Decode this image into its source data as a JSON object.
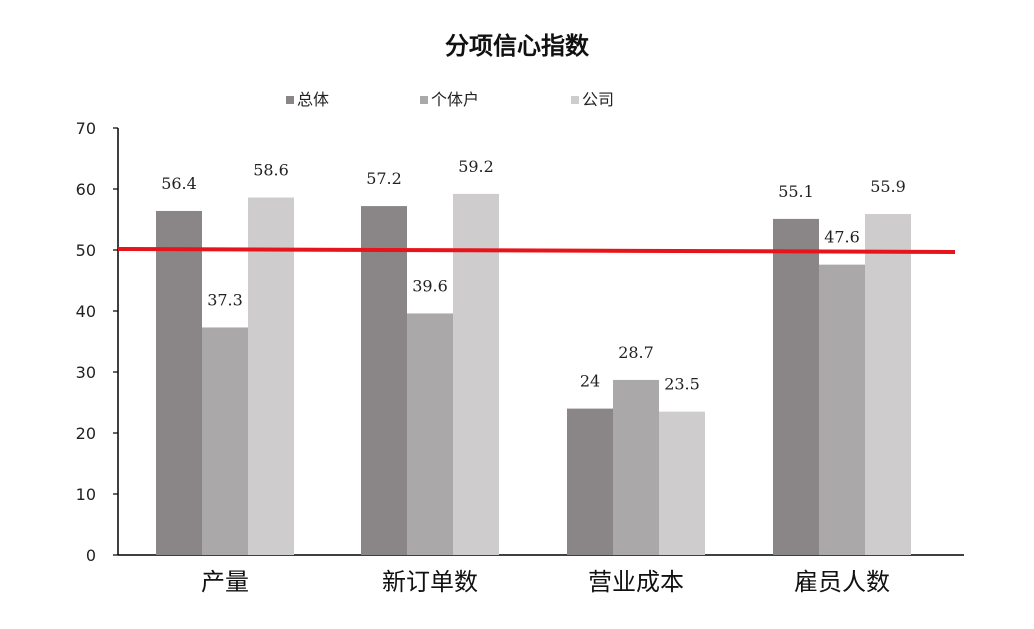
{
  "chart_data": {
    "type": "bar",
    "title": "分项信心指数",
    "categories": [
      "产量",
      "新订单数",
      "营业成本",
      "雇员人数"
    ],
    "series": [
      {
        "name": "总体",
        "values": [
          56.4,
          57.2,
          24,
          55.1
        ],
        "color": "#8a8587"
      },
      {
        "name": "个体户",
        "values": [
          37.3,
          39.6,
          28.7,
          47.6
        ],
        "color": "#aaa8a9"
      },
      {
        "name": "公司",
        "values": [
          58.6,
          59.2,
          23.5,
          55.9
        ],
        "color": "#cfccce"
      }
    ],
    "data_labels": [
      [
        "56.4",
        "57.2",
        "24",
        "55.1"
      ],
      [
        "37.3",
        "39.6",
        "28.7",
        "47.6"
      ],
      [
        "58.6",
        "59.2",
        "23.5",
        "55.9"
      ]
    ],
    "ylim": [
      0,
      70
    ],
    "yticks": [
      "0",
      "10",
      "20",
      "30",
      "40",
      "50",
      "60",
      "70"
    ],
    "reference_line": {
      "value": 50,
      "color": "#e8141b"
    },
    "legend_position": "top",
    "grid": false
  }
}
